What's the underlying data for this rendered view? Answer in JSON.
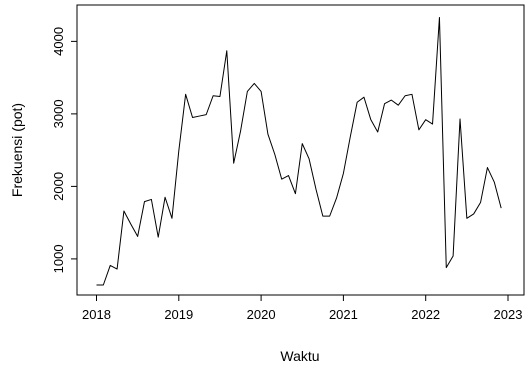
{
  "chart_data": {
    "type": "line",
    "title": "",
    "xlabel": "Waktu",
    "ylabel": "Frekuensi (pot)",
    "xlim": [
      2018,
      2023
    ],
    "ylim": [
      640,
      4350
    ],
    "grid": false,
    "x_ticks": [
      2018,
      2019,
      2020,
      2021,
      2022,
      2023
    ],
    "x_tick_labels": [
      "2018",
      "2019",
      "2020",
      "2021",
      "2022",
      "2023"
    ],
    "y_ticks": [
      1000,
      2000,
      3000,
      4000
    ],
    "y_tick_labels": [
      "1000",
      "2000",
      "3000",
      "4000"
    ],
    "line_color": "#000000",
    "series": [
      {
        "x": [
          2018.0,
          2018.083,
          2018.167,
          2018.25,
          2018.333,
          2018.417,
          2018.5,
          2018.583,
          2018.667,
          2018.75,
          2018.833,
          2018.917,
          2019.0,
          2019.083,
          2019.167,
          2019.25,
          2019.333,
          2019.417,
          2019.5,
          2019.583,
          2019.667,
          2019.75,
          2019.833,
          2019.917,
          2020.0,
          2020.083,
          2020.167,
          2020.25,
          2020.333,
          2020.417,
          2020.5,
          2020.583,
          2020.667,
          2020.75,
          2020.833,
          2020.917,
          2021.0,
          2021.083,
          2021.167,
          2021.25,
          2021.333,
          2021.417,
          2021.5,
          2021.583,
          2021.667,
          2021.75,
          2021.833,
          2021.917,
          2022.0,
          2022.083,
          2022.167,
          2022.25,
          2022.333,
          2022.417,
          2022.5,
          2022.583,
          2022.667,
          2022.75,
          2022.833,
          2022.917
        ],
        "values": [
          640,
          640,
          910,
          860,
          1660,
          1480,
          1310,
          1790,
          1820,
          1300,
          1850,
          1560,
          2490,
          3270,
          2950,
          2970,
          2990,
          3250,
          3240,
          3870,
          2320,
          2760,
          3310,
          3420,
          3310,
          2720,
          2440,
          2100,
          2150,
          1900,
          2590,
          2380,
          1960,
          1590,
          1590,
          1840,
          2180,
          2680,
          3160,
          3230,
          2920,
          2750,
          3140,
          3190,
          3120,
          3250,
          3270,
          2780,
          2920,
          2860,
          4330,
          880,
          1040,
          2930,
          1560,
          1620,
          1780,
          2260,
          2060,
          1700
        ]
      }
    ]
  }
}
